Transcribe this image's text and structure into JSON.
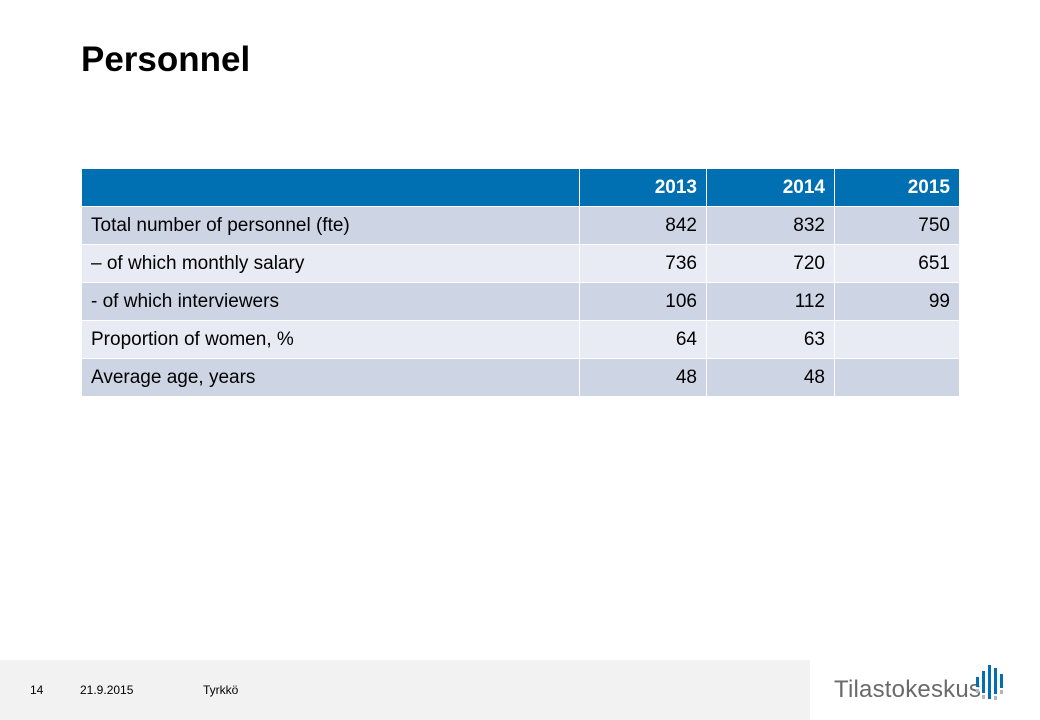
{
  "slide": {
    "title": "Personnel"
  },
  "table": {
    "headers": [
      "",
      "2013",
      "2014",
      "2015"
    ],
    "rows": [
      {
        "label": "Total number of personnel (fte)",
        "values": [
          "842",
          "832",
          "750"
        ]
      },
      {
        "label": "– of which monthly salary",
        "values": [
          "736",
          "720",
          "651"
        ]
      },
      {
        "label": "- of which interviewers",
        "values": [
          "106",
          "112",
          "99"
        ]
      },
      {
        "label": "Proportion of women, %",
        "values": [
          "64",
          "63",
          ""
        ]
      },
      {
        "label": "Average age, years",
        "values": [
          "48",
          "48",
          ""
        ]
      }
    ]
  },
  "footer": {
    "page_number": "14",
    "date": "21.9.2015",
    "author": "Tyrkkö"
  },
  "logo": {
    "text": "Tilastokeskus",
    "icon": "bar-graph-logo-icon"
  },
  "colors": {
    "header_bg": "#0070b3",
    "row_dark": "#cdd5e5",
    "row_light": "#e8ebf3",
    "logo_blue": "#0070b3"
  }
}
